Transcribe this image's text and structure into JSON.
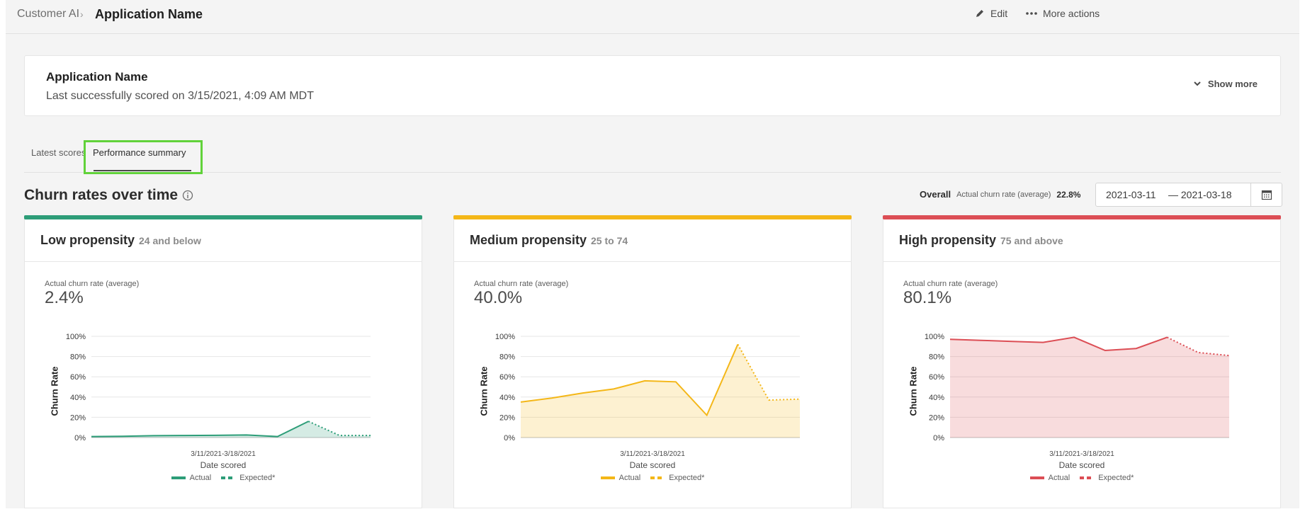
{
  "breadcrumb": {
    "root": "Customer AI",
    "current": "Application Name"
  },
  "top_actions": {
    "edit": "Edit",
    "more": "More actions"
  },
  "app": {
    "title": "Application Name",
    "subtitle": "Last successfully scored on 3/15/2021, 4:09 AM MDT",
    "show_more": "Show more"
  },
  "tabs": [
    {
      "label": "Latest scores"
    },
    {
      "label": "Performance summary"
    }
  ],
  "section": {
    "title": "Churn rates over time",
    "overall_label": "Overall",
    "overall_sub": "Actual churn rate (average)",
    "overall_value": "22.8%",
    "date_from": "2021-03-11",
    "date_to": "— 2021-03-18"
  },
  "colors": {
    "low": "#2d9d78",
    "medium": "#f4b718",
    "high": "#dc4e55"
  },
  "panels": [
    {
      "key": "low",
      "title": "Low propensity",
      "range": "24 and below",
      "metric_label": "Actual churn rate (average)",
      "metric_value": "2.4%",
      "ylabel": "Churn Rate",
      "xrange": "3/11/2021-3/18/2021",
      "xlabel": "Date scored",
      "legend_actual": "Actual",
      "legend_expected": "Expected*"
    },
    {
      "key": "medium",
      "title": "Medium propensity",
      "range": "25 to 74",
      "metric_label": "Actual churn rate (average)",
      "metric_value": "40.0%",
      "ylabel": "Churn Rate",
      "xrange": "3/11/2021-3/18/2021",
      "xlabel": "Date scored",
      "legend_actual": "Actual",
      "legend_expected": "Expected*"
    },
    {
      "key": "high",
      "title": "High propensity",
      "range": "75 and above",
      "metric_label": "Actual churn rate (average)",
      "metric_value": "80.1%",
      "ylabel": "Churn Rate",
      "xrange": "3/11/2021-3/18/2021",
      "xlabel": "Date scored",
      "legend_actual": "Actual",
      "legend_expected": "Expected*"
    }
  ],
  "chart_data": [
    {
      "type": "area",
      "title": "Low propensity",
      "ylabel": "Churn Rate",
      "xlabel": "Date scored",
      "y_ticks": [
        "0%",
        "20%",
        "40%",
        "60%",
        "80%",
        "100%"
      ],
      "ylim": [
        0,
        100
      ],
      "series": [
        {
          "name": "Actual",
          "values": [
            1,
            1.2,
            1.8,
            2,
            2.2,
            2.5,
            1,
            16
          ]
        },
        {
          "name": "Expected*",
          "values": [
            16,
            2,
            2
          ]
        }
      ]
    },
    {
      "type": "area",
      "title": "Medium propensity",
      "ylabel": "Churn Rate",
      "xlabel": "Date scored",
      "y_ticks": [
        "0%",
        "20%",
        "40%",
        "60%",
        "80%",
        "100%"
      ],
      "ylim": [
        0,
        100
      ],
      "series": [
        {
          "name": "Actual",
          "values": [
            35,
            39,
            44,
            48,
            56,
            55,
            22,
            92
          ]
        },
        {
          "name": "Expected*",
          "values": [
            92,
            37,
            38
          ]
        }
      ]
    },
    {
      "type": "area",
      "title": "High propensity",
      "ylabel": "Churn Rate",
      "xlabel": "Date scored",
      "y_ticks": [
        "0%",
        "20%",
        "40%",
        "60%",
        "80%",
        "100%"
      ],
      "ylim": [
        0,
        100
      ],
      "series": [
        {
          "name": "Actual",
          "values": [
            97,
            96,
            95,
            94,
            99,
            86,
            88,
            99
          ]
        },
        {
          "name": "Expected*",
          "values": [
            99,
            84,
            81
          ]
        }
      ]
    }
  ]
}
